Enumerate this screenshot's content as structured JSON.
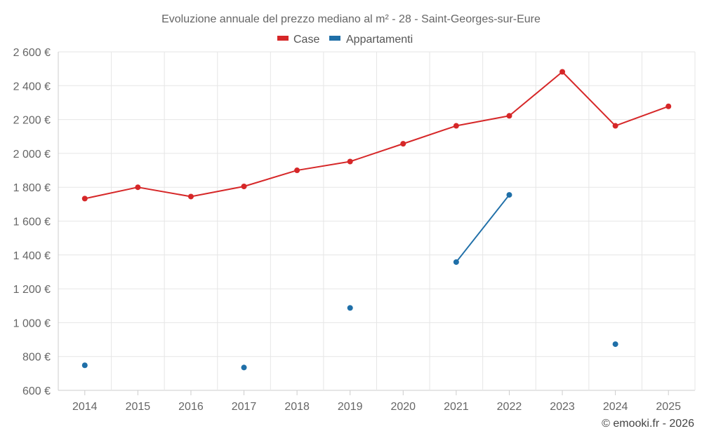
{
  "chart_data": {
    "type": "line",
    "title": "Evoluzione annuale del prezzo mediano al m² - 28 - Saint-Georges-sur-Eure",
    "categories": [
      "2014",
      "2015",
      "2016",
      "2017",
      "2018",
      "2019",
      "2020",
      "2021",
      "2022",
      "2023",
      "2024",
      "2025"
    ],
    "ylim": [
      600,
      2600
    ],
    "y_ticks": [
      600,
      800,
      1000,
      1200,
      1400,
      1600,
      1800,
      2000,
      2200,
      2400,
      2600
    ],
    "y_tick_labels": [
      "600 €",
      "800 €",
      "1 000 €",
      "1 200 €",
      "1 400 €",
      "1 600 €",
      "1 800 €",
      "2 000 €",
      "2 200 €",
      "2 400 €",
      "2 600 €"
    ],
    "legend_position": "top-center",
    "grid": true,
    "series": [
      {
        "name": "Case",
        "color": "#d62728",
        "values": [
          1733,
          1800,
          1745,
          1805,
          1900,
          1952,
          2057,
          2163,
          2222,
          2482,
          2163,
          2278
        ]
      },
      {
        "name": "Appartamenti",
        "color": "#1f6fa8",
        "values": [
          748,
          null,
          null,
          735,
          null,
          1087,
          null,
          1358,
          1755,
          null,
          873,
          null
        ]
      }
    ]
  },
  "credit": "© emooki.fr - 2026"
}
